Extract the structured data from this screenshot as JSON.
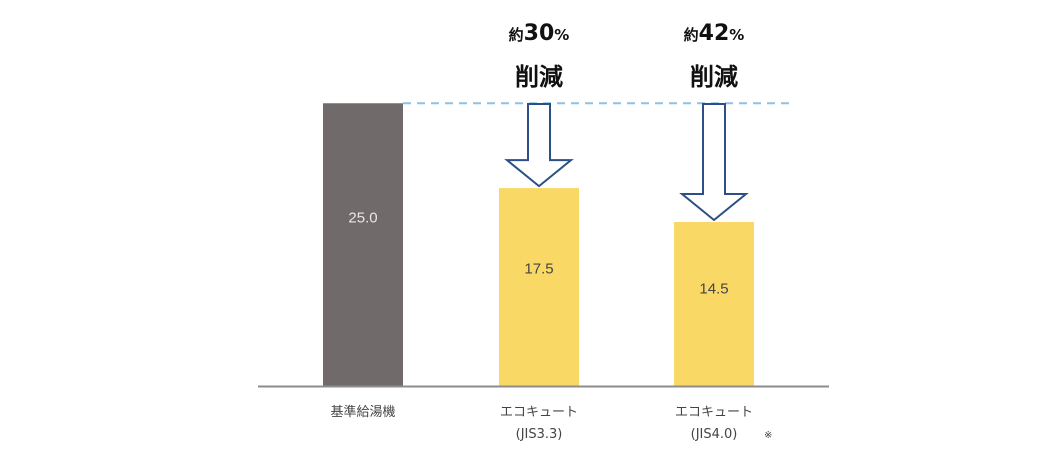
{
  "chart_data": {
    "type": "bar",
    "categories": [
      [
        "基準給湯機"
      ],
      [
        "エコキュート",
        "(JIS3.3)"
      ],
      [
        "エコキュート",
        "(JIS4.0)"
      ]
    ],
    "category_notes": [
      "",
      "",
      "※"
    ],
    "values": [
      25.0,
      17.5,
      14.5
    ],
    "value_labels": [
      "25.0",
      "17.5",
      "14.5"
    ],
    "ylim": [
      0,
      27.5
    ],
    "grid": false,
    "colors": {
      "baseline_bar": "#706a6a",
      "ecocute_bar": "#f9d866",
      "baseline_label": "#e9e6e6",
      "ecocute_label": "#454545",
      "reference_line": "#8fc0e6",
      "axis": "#8c8c8c",
      "arrow_stroke": "#2b4f86",
      "callout_text": "#111111",
      "category_text": "#444444"
    },
    "annotations": [
      {
        "target": 1,
        "prefix": "約",
        "percent": "30",
        "unit": "%",
        "label": "削減"
      },
      {
        "target": 2,
        "prefix": "約",
        "percent": "42",
        "unit": "%",
        "label": "削減"
      }
    ]
  }
}
